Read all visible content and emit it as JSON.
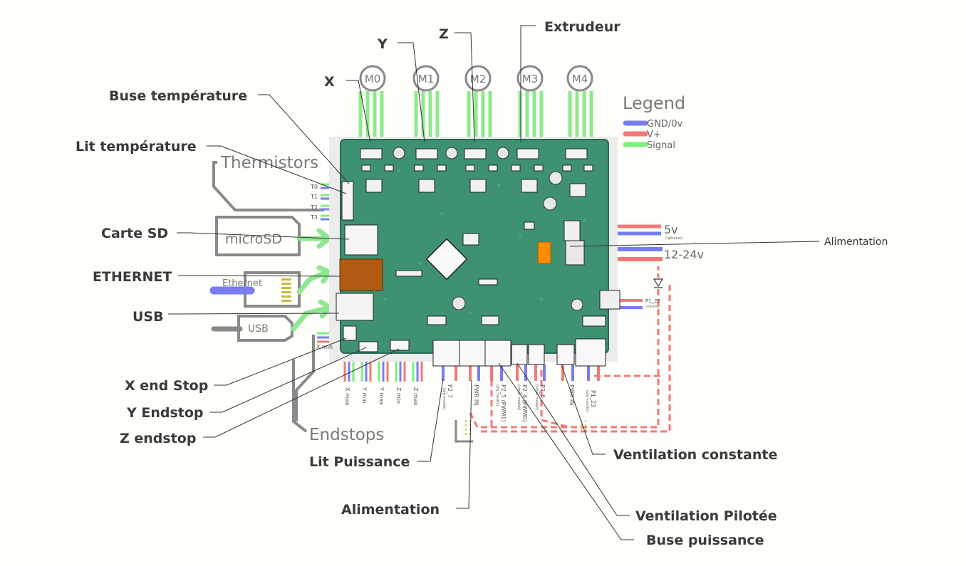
{
  "motors": {
    "m0": "M0",
    "m1": "M1",
    "m2": "M2",
    "m3": "M3",
    "m4": "M4"
  },
  "legend": {
    "title": "Legend",
    "items": [
      {
        "label": "GND/0v",
        "color": "#7a7cf0"
      },
      {
        "label": "V+",
        "color": "#f07a7a"
      },
      {
        "label": "Signal",
        "color": "#7cf07c"
      }
    ]
  },
  "callouts": {
    "x": "X",
    "y": "Y",
    "z": "Z",
    "extrudeur": "Extrudeur",
    "buse_temperature": "Buse température",
    "lit_temperature": "Lit température",
    "carte_sd": "Carte SD",
    "ethernet": "ETHERNET",
    "usb": "USB",
    "x_end_stop": "X end Stop",
    "y_endstop": "Y Endstop",
    "z_endstop": "Z endstop",
    "lit_puissance": "Lit Puissance",
    "alimentation_bottom": "Alimentation",
    "ventilation_constante": "Ventilation constante",
    "ventilation_pilotee": "Ventilation Pilotée",
    "buse_puissance": "Buse puissance",
    "alimentation_right": "Alimentation"
  },
  "board": {
    "thermistors": "Thermistors",
    "thermistor_pins": [
      "T0",
      "T1",
      "T2",
      "T3"
    ],
    "microsd": "microSD",
    "ethernet": "Ethernet",
    "usb": "USB",
    "endstops": "Endstops",
    "power_5v": "5v",
    "power_5v_note": "(optional)",
    "power_12_24v": "12-24v",
    "p1_22": "P1_22",
    "p1_22_note": "(mosfet)",
    "x_min": "X min",
    "endstop_pins": [
      "X max",
      "Y min",
      "Y max",
      "Z min",
      "Z max"
    ],
    "bottom_pins": [
      {
        "name": "P2_7",
        "note": "(big mosfet)"
      },
      {
        "name": "PWR IN",
        "note": ""
      },
      {
        "name": "P2_5 (PWM1)",
        "note": "(big mosfet)"
      },
      {
        "name": "P2_4 (PWM0)",
        "note": "(small mosfet)"
      },
      {
        "name": "P2_6",
        "note": "(small mosfet)"
      },
      {
        "name": "PWR IN",
        "note": ""
      },
      {
        "name": "P1_23",
        "note": "(big mosfet)"
      }
    ]
  }
}
